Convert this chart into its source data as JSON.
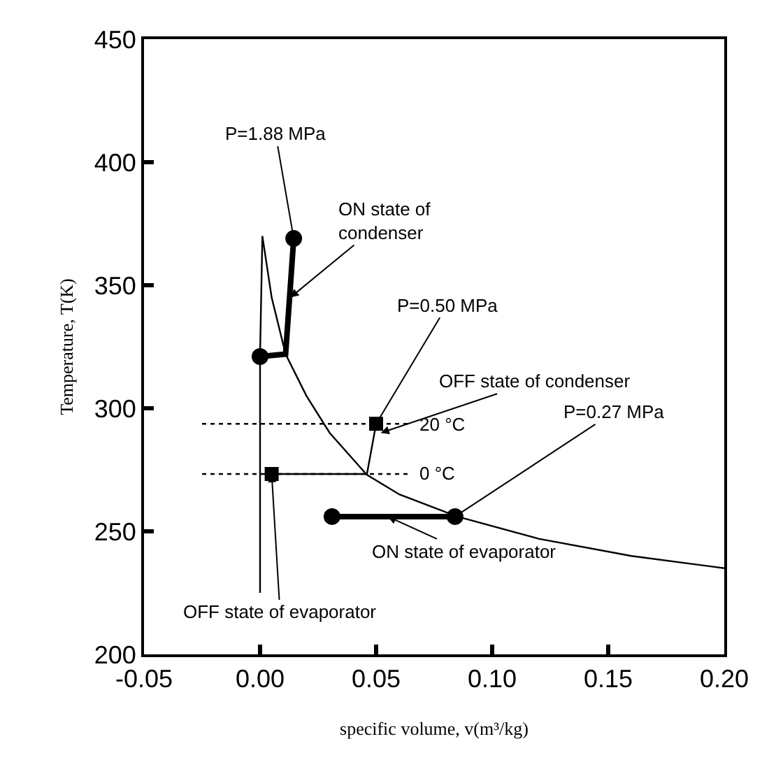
{
  "chart_data": {
    "type": "line",
    "xlabel": "specific volume, v(m³/kg)",
    "ylabel": "Temperature, T(K)",
    "xlim": [
      -0.05,
      0.2
    ],
    "xticks": [
      {
        "value": -0.05,
        "label": "-0.05"
      },
      {
        "value": 0,
        "label": "0.00"
      },
      {
        "value": 0.05,
        "label": "0.05"
      },
      {
        "value": 0.1,
        "label": "0.10"
      },
      {
        "value": 0.15,
        "label": "0.15"
      },
      {
        "value": 0.2,
        "label": "0.20"
      }
    ],
    "ylim": [
      200,
      450
    ],
    "yticks": [
      200,
      250,
      300,
      350,
      400,
      450
    ],
    "series": [
      {
        "color": "#000000",
        "line_style": "solid",
        "x": [
          0.0,
          0.0,
          0.001,
          0.005,
          0.011,
          0.02,
          0.03,
          0.046,
          0.06,
          0.085,
          0.12,
          0.16,
          0.2
        ],
        "values": [
          225,
          322,
          370,
          345,
          322,
          305,
          290,
          273,
          265,
          256,
          247,
          240,
          235
        ]
      },
      {
        "color": "#000000",
        "line_style": "solid",
        "x": [
          0.0,
          0.011,
          0.0145
        ],
        "values": [
          321,
          322,
          369
        ]
      },
      {
        "color": "#000000",
        "line_style": "solid",
        "x": [
          0.031,
          0.084
        ],
        "values": [
          256,
          256
        ]
      },
      {
        "color": "#000000",
        "line_style": "solid",
        "x": [
          0.046,
          0.05
        ],
        "values": [
          273,
          293.7
        ]
      },
      {
        "color": "#000000",
        "line_style": "solid",
        "x": [
          0.005,
          0.046
        ],
        "values": [
          273.3,
          273.3
        ]
      },
      {
        "color": "#000000",
        "line_style": "dotted",
        "x": [
          -0.025,
          0.064
        ],
        "values": [
          293.7,
          293.7
        ]
      },
      {
        "color": "#000000",
        "line_style": "dotted",
        "x": [
          -0.025,
          0.064
        ],
        "values": [
          273.3,
          273.3
        ]
      },
      {
        "type": "scatter",
        "color": "#000000",
        "marker": "circle",
        "x": [
          0.0,
          0.0145,
          0.031,
          0.084
        ],
        "values": [
          321,
          369,
          256,
          256
        ]
      },
      {
        "type": "scatter",
        "color": "#000000",
        "marker": "square",
        "x": [
          0.05,
          0.005
        ],
        "values": [
          293.7,
          273.3
        ]
      }
    ],
    "annotations": [
      {
        "text": "P=1.88 MPa",
        "x": 0.0145,
        "y": 369
      },
      {
        "text": "ON state of\ncondenser",
        "x": 0.013,
        "y": 345
      },
      {
        "text": "P=0.50 MPa",
        "x": 0.05,
        "y": 293.7
      },
      {
        "text": "OFF state of condenser",
        "x": 0.052,
        "y": 290
      },
      {
        "text": "20 °C",
        "x": 0.064,
        "y": 293.7
      },
      {
        "text": "0 °C",
        "x": 0.064,
        "y": 273.3
      },
      {
        "text": "P=0.27 MPa",
        "x": 0.084,
        "y": 256
      },
      {
        "text": "ON state of evaporator",
        "x": 0.055,
        "y": 256
      },
      {
        "text": "OFF state of evaporator",
        "x": 0.005,
        "y": 273.3
      }
    ]
  }
}
